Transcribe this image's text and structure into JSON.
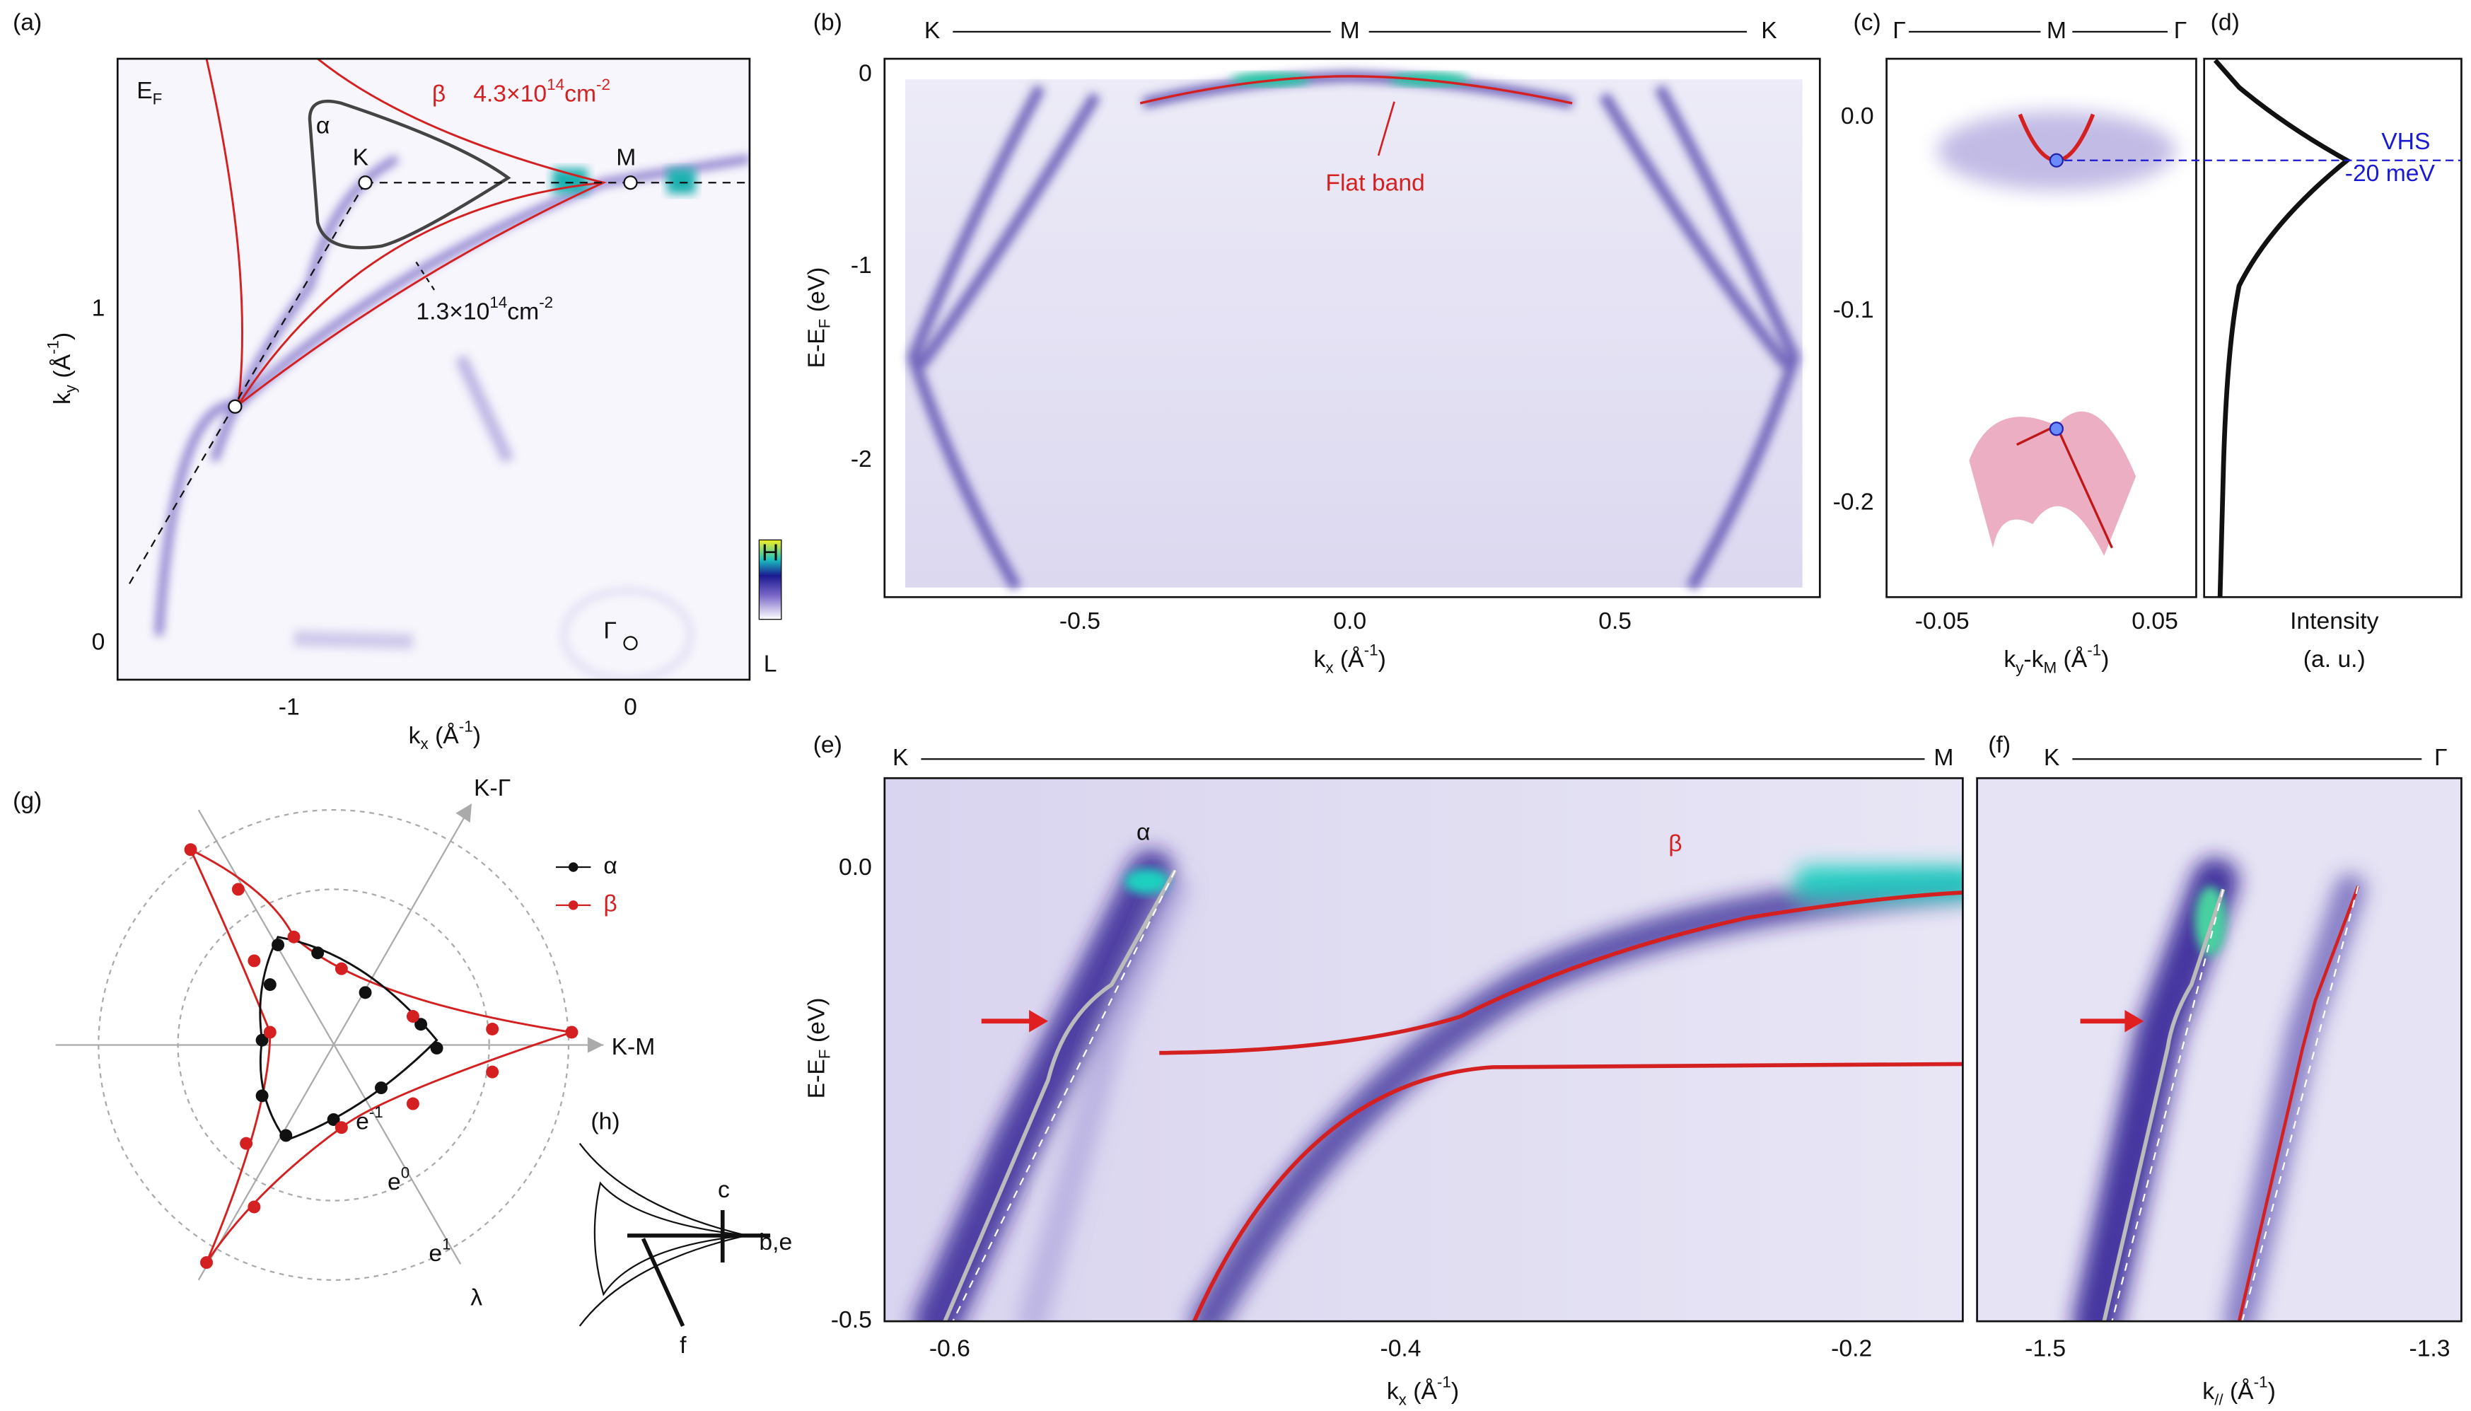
{
  "a": {
    "label": "(a)",
    "ef": {
      "main": "E",
      "sub": "F"
    },
    "alpha": "α",
    "beta": "β",
    "beta_density": {
      "main": "4.3×10",
      "sup": "14",
      "unit": "cm",
      "sup2": "-2"
    },
    "alpha_density": {
      "main": "1.3×10",
      "sup": "14",
      "unit": "cm",
      "sup2": "-2"
    },
    "k_point": "K",
    "m_point": "M",
    "gamma_point": "Γ",
    "yticks": [
      "1",
      "0"
    ],
    "xticks": [
      "-1",
      "0"
    ],
    "xlabel": {
      "main": "k",
      "sub": "x",
      "unit": " (Å",
      "sup": "-1",
      "close": ")"
    },
    "ylabel": {
      "main": "k",
      "sub": "y",
      "unit": " (Å",
      "sup": "-1",
      "close": ")"
    },
    "colorbar": {
      "high": "H",
      "low": "L"
    }
  },
  "b": {
    "label": "(b)",
    "path": [
      "K",
      "M",
      "K"
    ],
    "yticks": [
      "0",
      "-1",
      "-2"
    ],
    "xticks": [
      "-0.5",
      "0.0",
      "0.5"
    ],
    "xlabel": {
      "main": "k",
      "sub": "x",
      "unit": " (Å",
      "sup": "-1",
      "close": ")"
    },
    "ylabel": {
      "main": "E-E",
      "sub": "F",
      "unit": " (eV)"
    },
    "annotation": "Flat band"
  },
  "c": {
    "label": "(c)",
    "path": [
      "Γ",
      "M",
      "Γ"
    ],
    "yticks": [
      "0.0",
      "-0.1",
      "-0.2"
    ],
    "xticks": [
      "-0.05",
      "0.05"
    ],
    "xlabel": {
      "main": "k",
      "sub": "y",
      "mid": "-k",
      "sub2": "M",
      "unit": " (Å",
      "sup": "-1",
      "close": ")"
    }
  },
  "d": {
    "label": "(d)",
    "vhs": "VHS",
    "vhs_energy": "-20 meV",
    "xlabel": "Intensity",
    "xlabel_unit": "(a. u.)"
  },
  "e": {
    "label": "(e)",
    "path": [
      "K",
      "M"
    ],
    "yticks": [
      "0.0",
      "-0.5"
    ],
    "xticks": [
      "-0.6",
      "-0.4",
      "-0.2"
    ],
    "xlabel": {
      "main": "k",
      "sub": "x",
      "unit": " (Å",
      "sup": "-1",
      "close": ")"
    },
    "ylabel": {
      "main": "E-E",
      "sub": "F",
      "unit": " (eV)"
    },
    "alpha": "α",
    "beta": "β"
  },
  "f": {
    "label": "(f)",
    "path": [
      "K",
      "Γ"
    ],
    "xticks": [
      "-1.5",
      "-1.3"
    ],
    "xlabel": {
      "main": "k",
      "sub": "//",
      "unit": " (Å",
      "sup": "-1",
      "close": ")"
    }
  },
  "g": {
    "label": "(g)",
    "axis_kg": "K-Γ",
    "axis_km": "K-M",
    "axis_lambda": "λ",
    "rings": [
      {
        "main": "e",
        "sup": "-1"
      },
      {
        "main": "e",
        "sup": "0"
      },
      {
        "main": "e",
        "sup": "1"
      }
    ],
    "legend": [
      "α",
      "β"
    ]
  },
  "h": {
    "label": "(h)",
    "c": "c",
    "be": "b,e",
    "f": "f"
  }
}
